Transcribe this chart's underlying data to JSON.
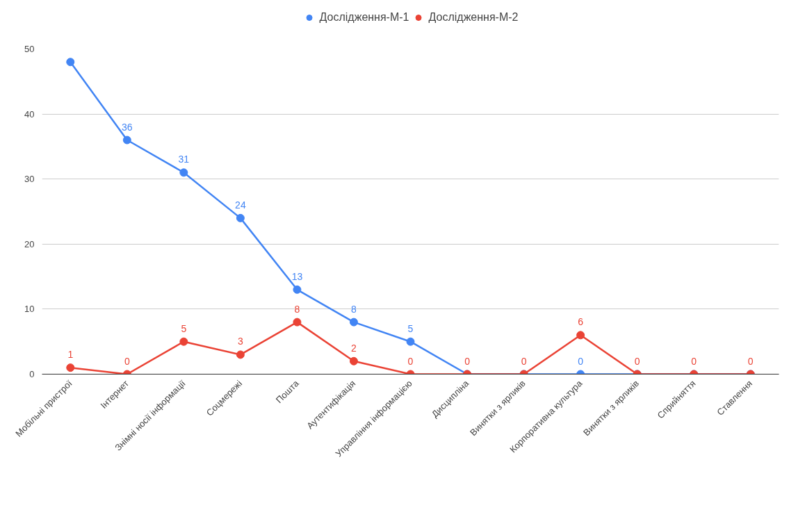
{
  "chart_data": {
    "type": "line",
    "legend": "top",
    "grid": "y",
    "marker": "circle",
    "line_style": "solid",
    "categories": [
      "Мобільні пристрої",
      "Інтернет",
      "Знімні носії інформації",
      "Соцмережі",
      "Пошта",
      "Аутентифікація",
      "Управління інформацією",
      "Дисципліна",
      "Винятки з ярликів",
      "Корпоративна культура",
      "Винятки з ярликів",
      "Сприйняття",
      "Ставлення"
    ],
    "ylim": [
      0,
      50
    ],
    "yticks": [
      0,
      10,
      20,
      30,
      40,
      50
    ],
    "series": [
      {
        "name": "Дослідження-М-1",
        "color": "#4285f4",
        "values": [
          48,
          36,
          31,
          24,
          13,
          8,
          5,
          0,
          0,
          0,
          0,
          0,
          0
        ],
        "value_labels": [
          null,
          "36",
          "31",
          "24",
          "13",
          "8",
          "5",
          null,
          null,
          "0",
          null,
          null,
          null
        ]
      },
      {
        "name": "Дослідження-М-2",
        "color": "#ea4335",
        "values": [
          1,
          0,
          5,
          3,
          8,
          2,
          0,
          0,
          0,
          6,
          0,
          0,
          0
        ],
        "value_labels": [
          "1",
          "0",
          "5",
          "3",
          "8",
          "2",
          "0",
          "0",
          "0",
          "6",
          "0",
          "0",
          "0"
        ]
      }
    ]
  }
}
